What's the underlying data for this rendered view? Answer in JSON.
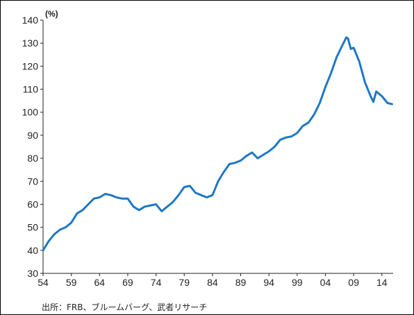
{
  "chart_data": {
    "type": "line",
    "title": "",
    "xlabel": "",
    "ylabel": "",
    "y_unit": "(%)",
    "ylim": [
      30,
      140
    ],
    "y_ticks": [
      30,
      40,
      50,
      60,
      70,
      80,
      90,
      100,
      110,
      120,
      130,
      140
    ],
    "xlim": [
      1954,
      2016
    ],
    "x_ticks": [
      "54",
      "59",
      "64",
      "69",
      "74",
      "79",
      "84",
      "89",
      "94",
      "99",
      "04",
      "09",
      "14"
    ],
    "grid": false,
    "legend": "none",
    "color": "#1f77c4",
    "series": [
      {
        "x": [
          1954,
          1955,
          1956,
          1957,
          1958,
          1959,
          1960,
          1961,
          1962,
          1963,
          1964,
          1965,
          1966,
          1967,
          1968,
          1969,
          1970,
          1971,
          1972,
          1973,
          1974,
          1975,
          1976,
          1977,
          1978,
          1979,
          1980,
          1981,
          1982,
          1983,
          1984,
          1985,
          1986,
          1987,
          1988,
          1989,
          1990,
          1991,
          1992,
          1993,
          1994,
          1995,
          1996,
          1997,
          1998,
          1999,
          2000,
          2001,
          2002,
          2003,
          2004,
          2005,
          2006,
          2007,
          2007.7,
          2008,
          2008.5,
          2009,
          2010,
          2011,
          2012,
          2012.5,
          2013,
          2014,
          2015,
          2015.8
        ],
        "values": [
          40,
          44,
          47,
          49,
          50,
          52,
          56,
          57.5,
          60,
          62.5,
          63,
          64.5,
          64,
          63,
          62.5,
          62.5,
          59,
          57.5,
          59,
          59.5,
          60,
          57,
          59,
          61,
          64,
          67.5,
          68,
          65,
          64,
          63,
          64,
          70,
          74,
          77.5,
          78,
          79,
          81,
          82.5,
          80,
          81.5,
          83,
          85,
          88,
          89,
          89.5,
          91,
          94,
          95.5,
          99,
          104,
          111,
          117,
          124,
          129,
          132.5,
          132,
          127.5,
          128,
          122,
          113,
          107,
          104.5,
          109,
          107,
          104,
          103.5
        ]
      }
    ],
    "source": "出所：FRB、ブルームバーグ、武者リサーチ"
  }
}
